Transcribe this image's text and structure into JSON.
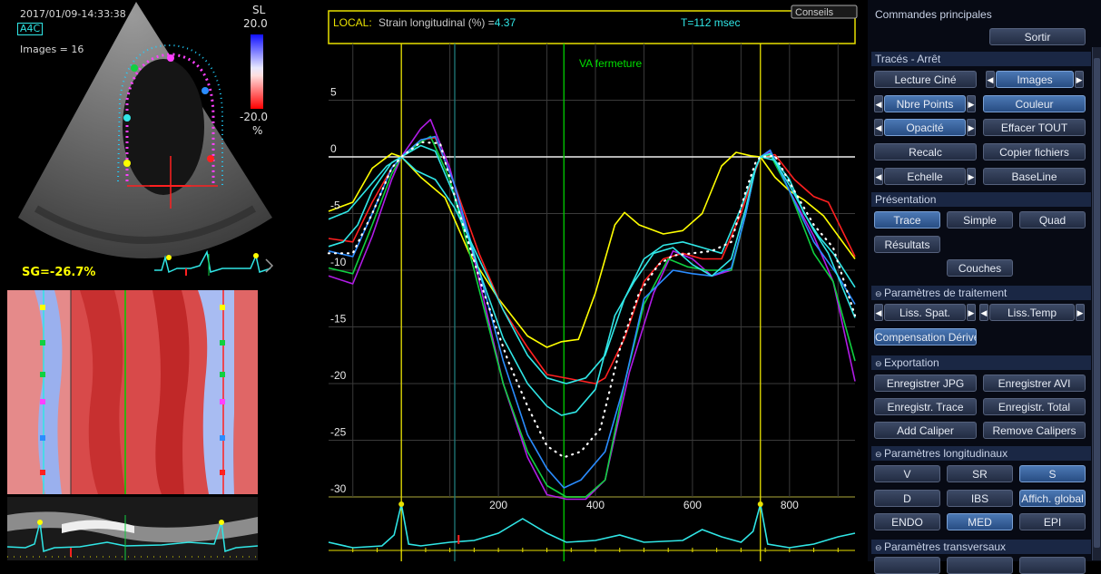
{
  "echo": {
    "datetime": "2017/01/09-14:33:38",
    "view_badge": "A4C",
    "images_label": "Images = 16",
    "scale_label": "SL",
    "scale_max": "20.0",
    "scale_min": "-20.0",
    "scale_unit": "%",
    "gs_label": "SG=-26.7%"
  },
  "chart": {
    "header_label": "LOCAL:",
    "header_text": "Strain longitudinal (%) =",
    "header_value": "4.37",
    "time_text": "T=112 msec",
    "conseils_label": "Conseils",
    "valve_label": "VA fermeture"
  },
  "chart_data": {
    "type": "line",
    "xlim": [
      -150,
      935
    ],
    "ylim": [
      -30,
      10
    ],
    "x_ticks": [
      "200",
      "400",
      "600",
      "800"
    ],
    "y_ticks": [
      "5",
      "0",
      "-5",
      "-10",
      "-15",
      "-20",
      "-25",
      "-30"
    ],
    "markers": [
      {
        "x": 0,
        "color": "#e8e000"
      },
      {
        "x": 110,
        "color": "#1f7a7a"
      },
      {
        "x": 335,
        "color": "#00d000"
      },
      {
        "x": 740,
        "color": "#e8e000"
      }
    ],
    "series": [
      {
        "color": "#ffff00",
        "points": [
          [
            -150,
            -4.8
          ],
          [
            -100,
            -4
          ],
          [
            -60,
            -1
          ],
          [
            -20,
            0.3
          ],
          [
            0,
            0
          ],
          [
            40,
            -1.8
          ],
          [
            90,
            -3.6
          ],
          [
            140,
            -8.5
          ],
          [
            200,
            -12.5
          ],
          [
            260,
            -15.8
          ],
          [
            300,
            -16.8
          ],
          [
            330,
            -16.3
          ],
          [
            365,
            -16.1
          ],
          [
            400,
            -12
          ],
          [
            440,
            -6
          ],
          [
            460,
            -4.9
          ],
          [
            490,
            -6
          ],
          [
            540,
            -6.8
          ],
          [
            580,
            -6.5
          ],
          [
            620,
            -5
          ],
          [
            660,
            -0.8
          ],
          [
            690,
            0.4
          ],
          [
            720,
            0.1
          ],
          [
            740,
            0
          ],
          [
            770,
            -1.8
          ],
          [
            800,
            -3
          ],
          [
            830,
            -3.8
          ],
          [
            870,
            -5.2
          ],
          [
            935,
            -9
          ]
        ]
      },
      {
        "color": "#ff2020",
        "points": [
          [
            -150,
            -7.2
          ],
          [
            -100,
            -7.5
          ],
          [
            -60,
            -4
          ],
          [
            -20,
            -1
          ],
          [
            0,
            0
          ],
          [
            40,
            1.5
          ],
          [
            70,
            1.7
          ],
          [
            110,
            -2.5
          ],
          [
            160,
            -8.5
          ],
          [
            210,
            -13.5
          ],
          [
            260,
            -16.8
          ],
          [
            300,
            -19.2
          ],
          [
            350,
            -19.6
          ],
          [
            400,
            -20
          ],
          [
            420,
            -19.5
          ],
          [
            460,
            -16
          ],
          [
            500,
            -11
          ],
          [
            540,
            -9
          ],
          [
            580,
            -8.5
          ],
          [
            620,
            -9
          ],
          [
            660,
            -9
          ],
          [
            700,
            -5
          ],
          [
            730,
            -1.2
          ],
          [
            740,
            0
          ],
          [
            770,
            0.2
          ],
          [
            810,
            -2
          ],
          [
            850,
            -3.5
          ],
          [
            880,
            -4
          ],
          [
            935,
            -8.8
          ]
        ]
      },
      {
        "color": "#b01ce6",
        "points": [
          [
            -150,
            -10.5
          ],
          [
            -100,
            -11.2
          ],
          [
            -60,
            -7
          ],
          [
            -20,
            -2
          ],
          [
            0,
            0
          ],
          [
            40,
            2.5
          ],
          [
            60,
            3.3
          ],
          [
            100,
            -1
          ],
          [
            150,
            -9
          ],
          [
            210,
            -20
          ],
          [
            260,
            -26.5
          ],
          [
            300,
            -29.8
          ],
          [
            340,
            -30.2
          ],
          [
            380,
            -30.2
          ],
          [
            420,
            -28.5
          ],
          [
            470,
            -19
          ],
          [
            520,
            -12
          ],
          [
            560,
            -8.3
          ],
          [
            600,
            -9
          ],
          [
            640,
            -10.5
          ],
          [
            680,
            -10
          ],
          [
            710,
            -5
          ],
          [
            730,
            -1
          ],
          [
            740,
            0
          ],
          [
            760,
            0.5
          ],
          [
            800,
            -3
          ],
          [
            850,
            -7
          ],
          [
            890,
            -11
          ],
          [
            935,
            -19.8
          ]
        ]
      },
      {
        "color": "#10d040",
        "points": [
          [
            -150,
            -9.8
          ],
          [
            -100,
            -10.3
          ],
          [
            -60,
            -6
          ],
          [
            -20,
            -1.5
          ],
          [
            0,
            0
          ],
          [
            40,
            1.3
          ],
          [
            60,
            1.8
          ],
          [
            100,
            -2
          ],
          [
            150,
            -10
          ],
          [
            210,
            -20
          ],
          [
            260,
            -26
          ],
          [
            300,
            -29
          ],
          [
            340,
            -30
          ],
          [
            380,
            -30
          ],
          [
            420,
            -28.5
          ],
          [
            460,
            -20
          ],
          [
            500,
            -13
          ],
          [
            550,
            -9
          ],
          [
            590,
            -9.7
          ],
          [
            630,
            -10
          ],
          [
            680,
            -10
          ],
          [
            710,
            -5
          ],
          [
            730,
            -1
          ],
          [
            740,
            0
          ],
          [
            760,
            0.2
          ],
          [
            800,
            -3
          ],
          [
            850,
            -8.5
          ],
          [
            890,
            -11
          ],
          [
            935,
            -18
          ]
        ]
      },
      {
        "color": "#2a8cff",
        "points": [
          [
            -150,
            -8.3
          ],
          [
            -100,
            -8.8
          ],
          [
            -60,
            -5
          ],
          [
            -20,
            -1
          ],
          [
            0,
            0
          ],
          [
            40,
            1.5
          ],
          [
            70,
            1.8
          ],
          [
            110,
            -2.5
          ],
          [
            160,
            -10
          ],
          [
            210,
            -18
          ],
          [
            260,
            -24.5
          ],
          [
            300,
            -27.5
          ],
          [
            335,
            -29.2
          ],
          [
            370,
            -28.5
          ],
          [
            420,
            -26
          ],
          [
            460,
            -20
          ],
          [
            500,
            -12.5
          ],
          [
            560,
            -10
          ],
          [
            600,
            -10.3
          ],
          [
            640,
            -10.5
          ],
          [
            680,
            -9.8
          ],
          [
            710,
            -5
          ],
          [
            730,
            -1
          ],
          [
            740,
            0
          ],
          [
            760,
            0.6
          ],
          [
            800,
            -3
          ],
          [
            850,
            -7.5
          ],
          [
            900,
            -10.5
          ],
          [
            935,
            -13
          ]
        ]
      },
      {
        "color": "#30e6e6",
        "points": [
          [
            -150,
            -7.9
          ],
          [
            -120,
            -7.5
          ],
          [
            -90,
            -6
          ],
          [
            -60,
            -3
          ],
          [
            -20,
            -0.5
          ],
          [
            0,
            0
          ],
          [
            40,
            1
          ],
          [
            70,
            0.5
          ],
          [
            110,
            -3.5
          ],
          [
            160,
            -10
          ],
          [
            210,
            -16
          ],
          [
            260,
            -20
          ],
          [
            300,
            -22
          ],
          [
            330,
            -22.8
          ],
          [
            360,
            -22.5
          ],
          [
            400,
            -20.5
          ],
          [
            440,
            -14
          ],
          [
            480,
            -11
          ],
          [
            520,
            -8.5
          ],
          [
            560,
            -8
          ],
          [
            600,
            -9.5
          ],
          [
            640,
            -10.5
          ],
          [
            680,
            -9
          ],
          [
            710,
            -4.5
          ],
          [
            730,
            -1
          ],
          [
            740,
            0
          ],
          [
            760,
            0.3
          ],
          [
            800,
            -2.5
          ],
          [
            850,
            -6.5
          ],
          [
            880,
            -8.5
          ],
          [
            935,
            -14.2
          ]
        ]
      },
      {
        "color": "#30e6e6",
        "points": [
          [
            -150,
            -5.5
          ],
          [
            -110,
            -4.8
          ],
          [
            -70,
            -2.8
          ],
          [
            -30,
            -0.8
          ],
          [
            0,
            0
          ],
          [
            30,
            -1.2
          ],
          [
            70,
            -2
          ],
          [
            110,
            -4.5
          ],
          [
            160,
            -9
          ],
          [
            210,
            -13.5
          ],
          [
            260,
            -17.5
          ],
          [
            300,
            -19.5
          ],
          [
            340,
            -20
          ],
          [
            380,
            -19.5
          ],
          [
            420,
            -17.5
          ],
          [
            460,
            -12.5
          ],
          [
            500,
            -9
          ],
          [
            540,
            -7.8
          ],
          [
            580,
            -7.5
          ],
          [
            620,
            -8
          ],
          [
            660,
            -8.5
          ],
          [
            700,
            -4.5
          ],
          [
            730,
            -1
          ],
          [
            740,
            0
          ],
          [
            770,
            -0.3
          ],
          [
            800,
            -2
          ],
          [
            830,
            -5
          ],
          [
            860,
            -7
          ],
          [
            890,
            -8.5
          ],
          [
            935,
            -11.5
          ]
        ]
      }
    ],
    "global_series": {
      "color": "#ffffff",
      "points": [
        [
          -150,
          -8.5
        ],
        [
          -100,
          -8.5
        ],
        [
          -60,
          -5
        ],
        [
          -20,
          -1
        ],
        [
          0,
          0
        ],
        [
          40,
          1.3
        ],
        [
          80,
          1.2
        ],
        [
          120,
          -5
        ],
        [
          170,
          -12
        ],
        [
          220,
          -18
        ],
        [
          260,
          -22
        ],
        [
          300,
          -25.5
        ],
        [
          335,
          -26.5
        ],
        [
          370,
          -26
        ],
        [
          410,
          -24
        ],
        [
          450,
          -17
        ],
        [
          490,
          -12
        ],
        [
          530,
          -9.5
        ],
        [
          560,
          -8.7
        ],
        [
          600,
          -8.5
        ],
        [
          640,
          -8.3
        ],
        [
          680,
          -7.5
        ],
        [
          710,
          -3
        ],
        [
          730,
          -0.5
        ],
        [
          740,
          0
        ],
        [
          770,
          0.1
        ],
        [
          810,
          -3
        ],
        [
          850,
          -6
        ],
        [
          890,
          -8
        ],
        [
          935,
          -14
        ]
      ]
    }
  },
  "panel": {
    "main_title": "Commandes principales",
    "sortir": "Sortir",
    "traces_title": "Tracés - Arrêt",
    "lecture_cine": "Lecture Ciné",
    "images": "Images",
    "nbre_points": "Nbre Points",
    "couleur": "Couleur",
    "opacite": "Opacité",
    "effacer_tout": "Effacer TOUT",
    "recalc": "Recalc",
    "copier_fichiers": "Copier fichiers",
    "echelle": "Echelle",
    "baseline": "BaseLine",
    "presentation_title": "Présentation",
    "trace": "Trace",
    "simple": "Simple",
    "quad": "Quad",
    "resultats": "Résultats",
    "couches": "Couches",
    "traitement_title": "Paramètres de traitement",
    "liss_spat": "Liss. Spat.",
    "liss_temp": "Liss.Temp",
    "compensation": "Compensation Dérive",
    "exportation_title": "Exportation",
    "enreg_jpg": "Enregistrer JPG",
    "enreg_avi": "Enregistrer AVI",
    "enreg_trace": "Enregistr. Trace",
    "enreg_total": "Enregistr. Total",
    "add_caliper": "Add Caliper",
    "remove_calipers": "Remove Calipers",
    "longitudinaux_title": "Paramètres longitudinaux",
    "v": "V",
    "sr": "SR",
    "s": "S",
    "d": "D",
    "ibs": "IBS",
    "affich_global": "Affich. global",
    "endo": "ENDO",
    "med": "MED",
    "epi": "EPI",
    "transversaux_title": "Paramètres transversaux"
  }
}
